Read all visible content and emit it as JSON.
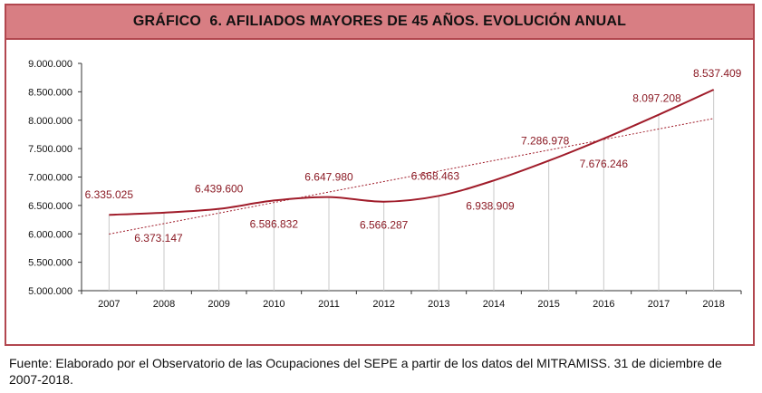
{
  "chart_data": {
    "type": "line",
    "title": "GRÁFICO  6. AFILIADOS MAYORES DE 45 AÑOS. EVOLUCIÓN ANUAL",
    "categories": [
      "2007",
      "2008",
      "2009",
      "2010",
      "2011",
      "2012",
      "2013",
      "2014",
      "2015",
      "2016",
      "2017",
      "2018"
    ],
    "series": [
      {
        "values": [
          6335025,
          6373147,
          6439600,
          6586832,
          6647980,
          6566287,
          6668463,
          6938909,
          7286978,
          7676246,
          8097208,
          8537409
        ],
        "labels": [
          "6.335.025",
          "6.373.147",
          "6.439.600",
          "6.586.832",
          "6.647.980",
          "6.566.287",
          "6.668.463",
          "6.938.909",
          "7.286.978",
          "7.676.246",
          "8.097.208",
          "8.537.409"
        ]
      }
    ],
    "trendline": {
      "style": "dotted linear"
    },
    "ylim": [
      5000000,
      9000000
    ],
    "yticks": [
      "5.000.000",
      "5.500.000",
      "6.000.000",
      "6.500.000",
      "7.000.000",
      "7.500.000",
      "8.000.000",
      "8.500.000",
      "9.000.000"
    ],
    "xlabel": "",
    "ylabel": "",
    "grid": false,
    "colors": {
      "series": "#a01c2a",
      "data_label": "#8b1a24",
      "drop_line": "#c8c8c8",
      "axis": "#333333"
    }
  },
  "footer": {
    "source": "Fuente: Elaborado por el Observatorio de las Ocupaciones del SEPE a partir de los datos del MITRAMISS. 31 de diciembre de 2007-2018."
  },
  "colors": {
    "title_bar": "#d87e83",
    "border": "#b2474f"
  }
}
